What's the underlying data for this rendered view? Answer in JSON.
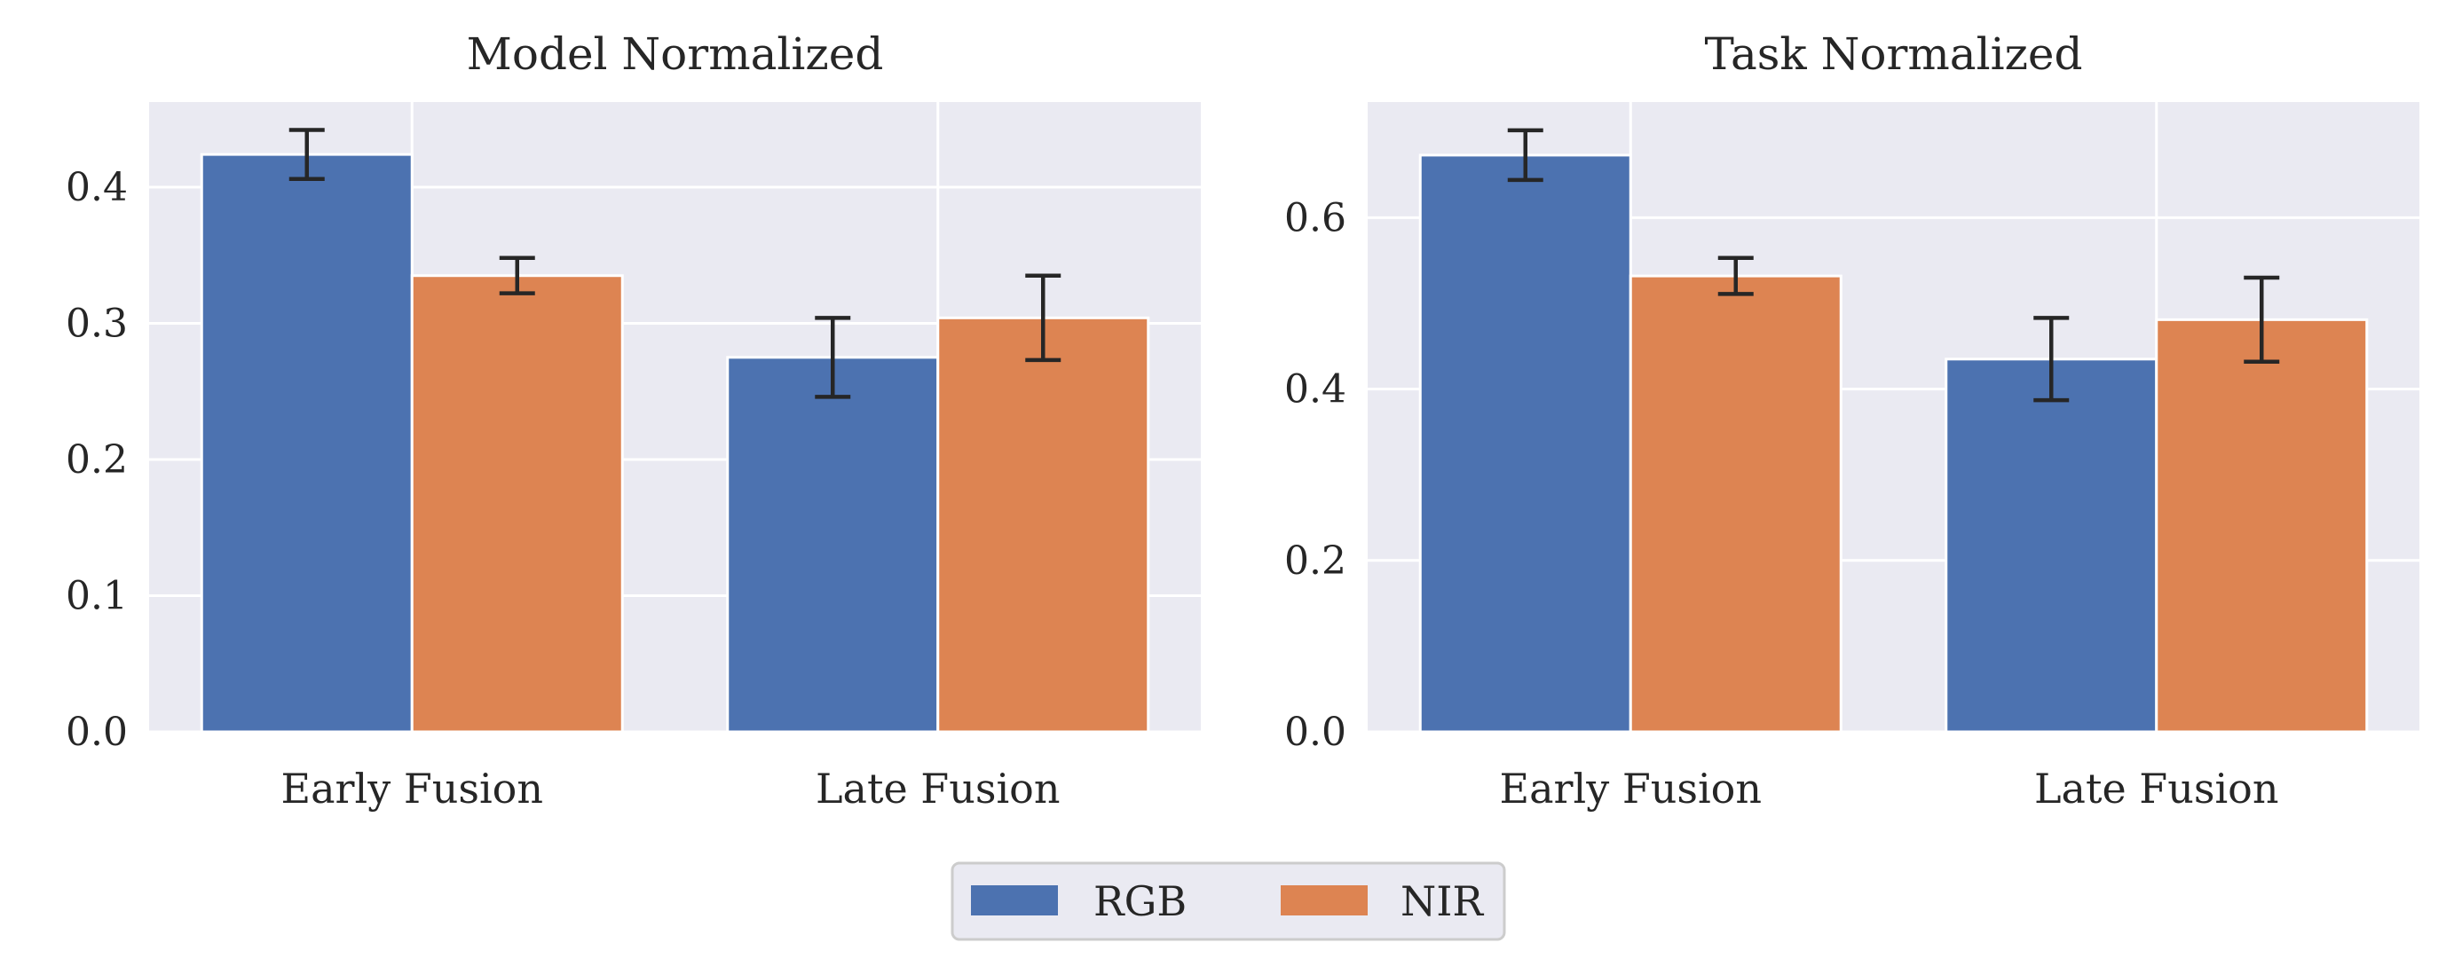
{
  "colors": {
    "plot_background": "#EAEAF2",
    "grid": "#FFFFFF",
    "rgb": "#4C72B0",
    "nir": "#DD8452",
    "error_bar": "#262626",
    "legend_border": "#CCCCCC"
  },
  "legend": {
    "placement": "bottom-center",
    "items": [
      {
        "label": "RGB",
        "color": "#4C72B0"
      },
      {
        "label": "NIR",
        "color": "#DD8452"
      }
    ]
  },
  "chart_data": [
    {
      "type": "bar",
      "title": "Model Normalized",
      "xlabel": "",
      "ylabel": "",
      "categories": [
        "Early Fusion",
        "Late Fusion"
      ],
      "ylim": [
        0,
        0.4625
      ],
      "yticks": [
        0.0,
        0.1,
        0.2,
        0.3,
        0.4
      ],
      "ytick_labels": [
        "0.0",
        "0.1",
        "0.2",
        "0.3",
        "0.4"
      ],
      "grid": true,
      "series": [
        {
          "name": "RGB",
          "values": [
            0.424,
            0.275
          ],
          "errors": [
            0.018,
            0.029
          ]
        },
        {
          "name": "NIR",
          "values": [
            0.335,
            0.304
          ],
          "errors": [
            0.013,
            0.031
          ]
        }
      ]
    },
    {
      "type": "bar",
      "title": "Task Normalized",
      "xlabel": "",
      "ylabel": "",
      "categories": [
        "Early Fusion",
        "Late Fusion"
      ],
      "ylim": [
        0,
        0.735
      ],
      "yticks": [
        0.0,
        0.2,
        0.4,
        0.6
      ],
      "ytick_labels": [
        "0.0",
        "0.2",
        "0.4",
        "0.6"
      ],
      "grid": true,
      "series": [
        {
          "name": "RGB",
          "values": [
            0.673,
            0.435
          ],
          "errors": [
            0.029,
            0.048
          ]
        },
        {
          "name": "NIR",
          "values": [
            0.532,
            0.481
          ],
          "errors": [
            0.021,
            0.049
          ]
        }
      ]
    }
  ]
}
